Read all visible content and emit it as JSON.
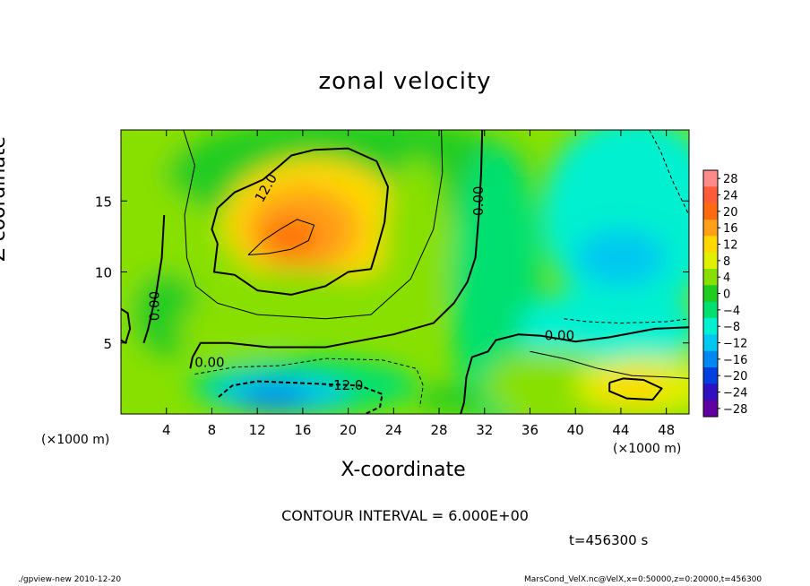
{
  "chart_data": {
    "type": "heatmap",
    "title": "zonal velocity",
    "xlabel": "X-coordinate",
    "ylabel": "Z-coordinate",
    "x_unit": "(×1000 m)",
    "xlim": [
      0,
      50
    ],
    "ylim": [
      0,
      20
    ],
    "x_ticks": [
      4,
      8,
      12,
      16,
      20,
      24,
      28,
      32,
      36,
      40,
      44,
      48
    ],
    "y_ticks": [
      5,
      10,
      15
    ],
    "colorbar_levels": [
      28,
      24,
      20,
      16,
      12,
      8,
      4,
      0,
      -4,
      -8,
      -12,
      -16,
      -20,
      -24,
      -28
    ],
    "colorbar_colors": [
      "#ff8a8a",
      "#ff5a3a",
      "#ff6a10",
      "#ffa018",
      "#ffd800",
      "#e0f000",
      "#88e000",
      "#20cc20",
      "#00e070",
      "#00f0d0",
      "#00c8f0",
      "#0088f0",
      "#0040e0",
      "#3010c0",
      "#6000a0"
    ],
    "contour_labels": [
      {
        "text": "12.0",
        "x": 12.8,
        "z": 15.9,
        "angle": -60
      },
      {
        "text": "0.00",
        "x": 31.5,
        "z": 15.0,
        "angle": -90
      },
      {
        "text": "0.00",
        "x": 3.0,
        "z": 7.6,
        "angle": -90
      },
      {
        "text": "0.00",
        "x": 38.6,
        "z": 5.5,
        "angle": 0
      },
      {
        "text": "0.00",
        "x": 7.8,
        "z": 3.6,
        "angle": 0
      },
      {
        "text": "-12.0",
        "x": 19.8,
        "z": 2.0,
        "angle": 0
      }
    ],
    "features": [
      {
        "name": "positive maximum",
        "x": 16,
        "z": 13,
        "approx_value": 20
      },
      {
        "name": "negative minimum",
        "x": 14,
        "z": 1.5,
        "approx_value": -16
      },
      {
        "name": "secondary positive maximum",
        "x": 45,
        "z": 1.8,
        "approx_value": 16
      }
    ]
  },
  "contour_interval_text": "CONTOUR INTERVAL = 6.000E+00",
  "time_text": "t=456300 s",
  "footer_left": "./gpview-new  2010-12-20",
  "footer_right": "MarsCond_VelX.nc@VelX,x=0:50000,z=0:20000,t=456300"
}
